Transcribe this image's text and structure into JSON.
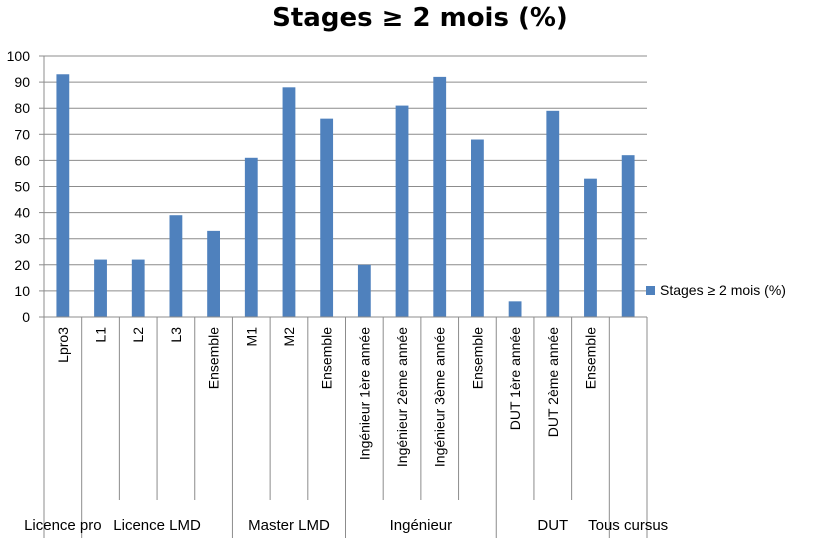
{
  "chart_data": {
    "type": "bar",
    "title": "Stages ≥ 2 mois (%)",
    "xlabel": "",
    "ylabel": "",
    "ylim": [
      0,
      100
    ],
    "yticks": [
      0,
      10,
      20,
      30,
      40,
      50,
      60,
      70,
      80,
      90,
      100
    ],
    "grid": true,
    "legend_position": "right",
    "bar_color": "#4F81BD",
    "categories": [
      "Lpro3",
      "L1",
      "L2",
      "L3",
      "Ensemble",
      "M1",
      "M2",
      "Ensemble",
      "Ingénieur 1ère année",
      "Ingénieur 2ème année",
      "Ingénieur 3ème année",
      "Ensemble",
      "DUT 1ère année",
      "DUT 2ème année",
      "Ensemble",
      ""
    ],
    "groups": [
      {
        "label": "Licence pro",
        "count": 1
      },
      {
        "label": "Licence LMD",
        "count": 4
      },
      {
        "label": "Master LMD",
        "count": 3
      },
      {
        "label": "Ingénieur",
        "count": 4
      },
      {
        "label": "DUT",
        "count": 3
      },
      {
        "label": "Tous cursus",
        "count": 1
      }
    ],
    "series": [
      {
        "name": "Stages ≥ 2 mois (%)",
        "values": [
          93,
          22,
          22,
          39,
          33,
          61,
          88,
          76,
          20,
          81,
          92,
          68,
          6,
          79,
          53,
          62
        ]
      }
    ]
  }
}
